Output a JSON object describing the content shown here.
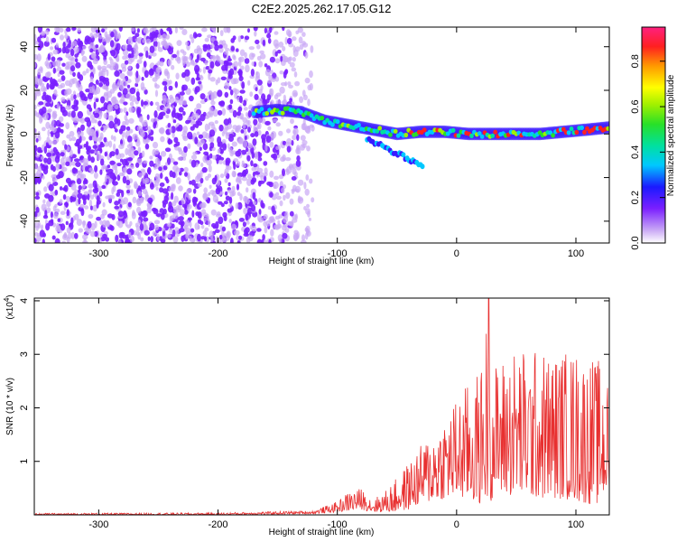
{
  "title": "C2E2.2025.262.17.05.G12",
  "colors": {
    "snr_line": "#e83030",
    "scatter_main": "#7a1fff",
    "scatter_light": "#c9a8f5"
  },
  "chart_data": [
    {
      "type": "heatmap",
      "name": "spectrogram",
      "xlabel": "Height of straight line (km)",
      "ylabel": "Frequency (Hz)",
      "xlim": [
        -354,
        128
      ],
      "ylim": [
        -50,
        49
      ],
      "xticks": [
        -300,
        -200,
        -100,
        0,
        100
      ],
      "yticks": [
        -40,
        -20,
        0,
        20,
        40
      ],
      "xtick_labels": [
        "-300",
        "-200",
        "-100",
        "0",
        "100"
      ],
      "ytick_labels": [
        "-40",
        "-20",
        "0",
        "20",
        "40"
      ],
      "noise_region": {
        "x": [
          -354,
          -120
        ],
        "freq": [
          -50,
          49
        ]
      },
      "signal_ridge": {
        "x": [
          -170,
          -150,
          -130,
          -110,
          -90,
          -70,
          -50,
          -30,
          -10,
          10,
          30,
          50,
          70,
          90,
          110,
          128
        ],
        "freq": [
          10,
          11,
          10,
          6,
          4,
          2,
          0,
          1,
          1,
          0,
          0,
          0,
          0,
          1,
          2,
          3
        ]
      },
      "colorbar": {
        "label": "Normalized spectral amplitude",
        "range": [
          0,
          0.95
        ],
        "ticks": [
          0.0,
          0.2,
          0.4,
          0.6,
          0.8
        ],
        "tick_labels": [
          "0.0",
          "0.2",
          "0.4",
          "0.6",
          "0.8"
        ]
      }
    },
    {
      "type": "line",
      "name": "snr",
      "xlabel": "Height of straight line (km)",
      "ylabel": "SNR (10 * v/v)",
      "y_multiplier": "(x10",
      "y_multiplier_exp": "4",
      "y_multiplier_close": ")",
      "xlim": [
        -354,
        128
      ],
      "ylim": [
        0,
        4.05
      ],
      "xticks": [
        -300,
        -200,
        -100,
        0,
        100
      ],
      "yticks": [
        1,
        2,
        3,
        4
      ],
      "xtick_labels": [
        "-300",
        "-200",
        "-100",
        "0",
        "100"
      ],
      "ytick_labels": [
        "1",
        "2",
        "3",
        "4"
      ],
      "envelope": {
        "x": [
          -354,
          -200,
          -120,
          -100,
          -90,
          -80,
          -70,
          -60,
          -50,
          -40,
          -30,
          -20,
          -10,
          0,
          10,
          20,
          27,
          30,
          40,
          50,
          60,
          70,
          80,
          90,
          100,
          110,
          120,
          128
        ],
        "low": [
          0.0,
          0.0,
          0.02,
          0.05,
          0.08,
          0.1,
          0.05,
          0.05,
          0.05,
          0.1,
          0.2,
          0.25,
          0.3,
          0.3,
          0.25,
          0.2,
          0.2,
          0.3,
          0.35,
          0.35,
          0.3,
          0.3,
          0.3,
          0.3,
          0.25,
          0.2,
          0.2,
          0.4
        ],
        "high": [
          0.03,
          0.04,
          0.08,
          0.25,
          0.45,
          0.5,
          0.3,
          0.45,
          0.7,
          1.0,
          1.3,
          1.6,
          1.9,
          2.2,
          2.5,
          2.7,
          4.05,
          2.8,
          3.0,
          3.2,
          3.1,
          3.1,
          3.05,
          3.1,
          3.1,
          3.0,
          2.9,
          2.4
        ]
      }
    }
  ]
}
